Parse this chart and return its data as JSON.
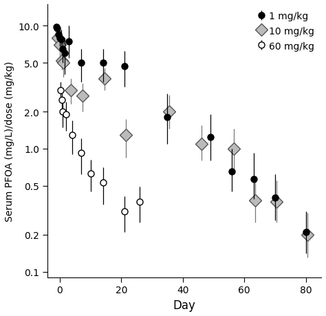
{
  "title": "",
  "xlabel": "Day",
  "ylabel": "Serum PFOA (mg/L)/dose (mg/kg)",
  "ylim_log": [
    0.09,
    15.0
  ],
  "xlim": [
    -4,
    85
  ],
  "xticks": [
    0,
    20,
    40,
    60,
    80
  ],
  "yticks": [
    0.1,
    0.2,
    0.5,
    1.0,
    2.0,
    5.0,
    10.0
  ],
  "ytick_labels": [
    "0.1",
    "0.2",
    "0.5",
    "1.0",
    "2.0",
    "5.0",
    "10.0"
  ],
  "series_1mg": {
    "label": "1 mg/kg",
    "x": [
      -1.2,
      -0.8,
      -0.4,
      0.0,
      0.4,
      0.8,
      1.5,
      3.0,
      7.0,
      14.0,
      21.0,
      35.0,
      49.0,
      56.0,
      63.0,
      70.0,
      80.0
    ],
    "y": [
      9.8,
      9.5,
      8.5,
      8.0,
      7.8,
      6.5,
      6.0,
      7.5,
      5.0,
      5.0,
      4.7,
      1.8,
      1.25,
      0.65,
      0.57,
      0.4,
      0.21
    ],
    "yerr_lo": [
      0.4,
      0.5,
      1.0,
      1.2,
      1.5,
      1.5,
      2.0,
      2.0,
      1.5,
      1.5,
      1.5,
      0.7,
      0.45,
      0.2,
      0.18,
      0.14,
      0.07
    ],
    "yerr_hi": [
      0.4,
      0.5,
      1.0,
      1.5,
      1.5,
      1.5,
      2.0,
      2.5,
      1.5,
      1.5,
      1.5,
      1.0,
      0.65,
      0.35,
      0.35,
      0.22,
      0.1
    ]
  },
  "series_10mg": {
    "label": "10 mg/kg",
    "x": [
      -0.6,
      0.0,
      0.6,
      1.2,
      3.5,
      7.5,
      14.5,
      21.5,
      35.5,
      46.0,
      56.5,
      63.5,
      70.5,
      80.5
    ],
    "y": [
      8.0,
      7.0,
      5.2,
      5.0,
      3.0,
      2.7,
      3.7,
      1.3,
      2.0,
      1.1,
      1.0,
      0.38,
      0.37,
      0.2
    ],
    "yerr_lo": [
      1.5,
      2.0,
      0.8,
      1.2,
      0.7,
      0.7,
      0.7,
      0.45,
      0.55,
      0.3,
      0.35,
      0.13,
      0.12,
      0.07
    ],
    "yerr_hi": [
      1.5,
      2.5,
      0.8,
      1.5,
      0.7,
      0.7,
      0.8,
      0.45,
      0.75,
      0.45,
      0.45,
      0.18,
      0.18,
      0.1
    ]
  },
  "series_60mg": {
    "label": "60 mg/kg",
    "x": [
      0.2,
      0.6,
      1.0,
      2.0,
      4.0,
      7.0,
      10.0,
      14.0,
      21.0,
      26.0
    ],
    "y": [
      3.0,
      2.5,
      2.0,
      1.9,
      1.3,
      0.92,
      0.63,
      0.53,
      0.31,
      0.37
    ],
    "yerr_lo": [
      0.5,
      0.6,
      0.5,
      0.5,
      0.4,
      0.3,
      0.18,
      0.18,
      0.1,
      0.12
    ],
    "yerr_hi": [
      0.5,
      0.6,
      0.5,
      0.5,
      0.4,
      0.3,
      0.18,
      0.18,
      0.1,
      0.12
    ]
  }
}
